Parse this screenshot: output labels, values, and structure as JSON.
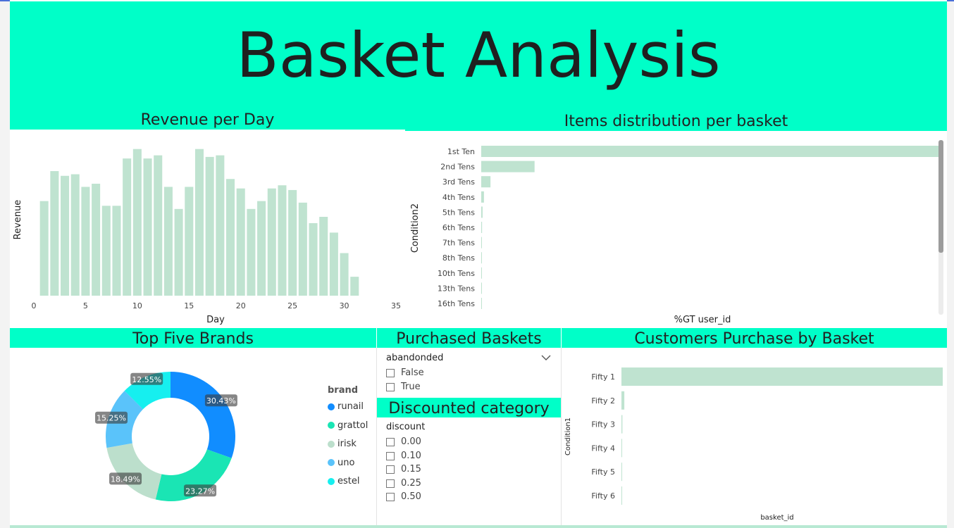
{
  "title": "Basket Analysis",
  "colors": {
    "accent": "#00ffc8",
    "bar": "#bfe3d0"
  },
  "slicers": {
    "purchased": {
      "title": "Purchased Baskets",
      "field": "abandonded",
      "options": [
        "False",
        "True"
      ]
    },
    "discounted": {
      "title": "Discounted category",
      "field": "discount",
      "options": [
        "0.00",
        "0.10",
        "0.15",
        "0.25",
        "0.50"
      ]
    }
  },
  "chart_data": [
    {
      "type": "bar",
      "title": "Revenue per Day",
      "xlabel": "Day",
      "ylabel": "Revenue",
      "xlim": [
        0,
        35
      ],
      "xticks": [
        "0",
        "5",
        "10",
        "15",
        "20",
        "25",
        "30",
        "35"
      ],
      "x": [
        1,
        2,
        3,
        4,
        5,
        6,
        7,
        8,
        9,
        10,
        11,
        12,
        13,
        14,
        15,
        16,
        17,
        18,
        19,
        20,
        21,
        22,
        23,
        24,
        25,
        26,
        27,
        28,
        29,
        30,
        31
      ],
      "values": [
        60,
        79,
        76,
        77,
        69,
        71,
        57,
        57,
        87,
        93,
        87,
        89,
        69,
        55,
        69,
        93,
        88,
        89,
        74,
        68,
        55,
        60,
        68,
        70,
        67,
        59,
        46,
        50,
        40,
        27,
        12
      ]
    },
    {
      "type": "bar",
      "orientation": "horizontal",
      "title": "Items distribution per basket",
      "ylabel": "Condition2",
      "xlabel": "%GT user_id",
      "categories": [
        "1st Ten",
        "2nd Tens",
        "3rd Tens",
        "4th Tens",
        "5th Tens",
        "6th Tens",
        "7th Tens",
        "8th Tens",
        "10th Tens",
        "13th Tens",
        "16th Tens"
      ],
      "values": [
        84.0,
        9.8,
        1.7,
        0.5,
        0.25,
        0.15,
        0.1,
        0.1,
        0.08,
        0.05,
        0.05
      ]
    },
    {
      "type": "pie",
      "title": "Top Five Brands",
      "legend_title": "brand",
      "legend_position": "right",
      "categories": [
        "runail",
        "grattol",
        "irisk",
        "uno",
        "estel"
      ],
      "values": [
        30.43,
        23.27,
        18.49,
        15.25,
        12.55
      ],
      "labels": [
        "30.43%",
        "23.27%",
        "18.49%",
        "15.25%",
        "12.55%"
      ],
      "colors": [
        "#118dff",
        "#1ae5b4",
        "#bcdfcc",
        "#5ac3fa",
        "#16efef"
      ]
    },
    {
      "type": "bar",
      "orientation": "horizontal",
      "title": "Customers Purchase by Basket",
      "ylabel": "Condition1",
      "xlabel": "basket_id",
      "categories": [
        "Fifty 1",
        "Fifty 2",
        "Fifty 3",
        "Fifty 4",
        "Fifty 5",
        "Fifty 6"
      ],
      "values": [
        100,
        0.9,
        0.3,
        0.2,
        0.15,
        0.1
      ]
    }
  ]
}
